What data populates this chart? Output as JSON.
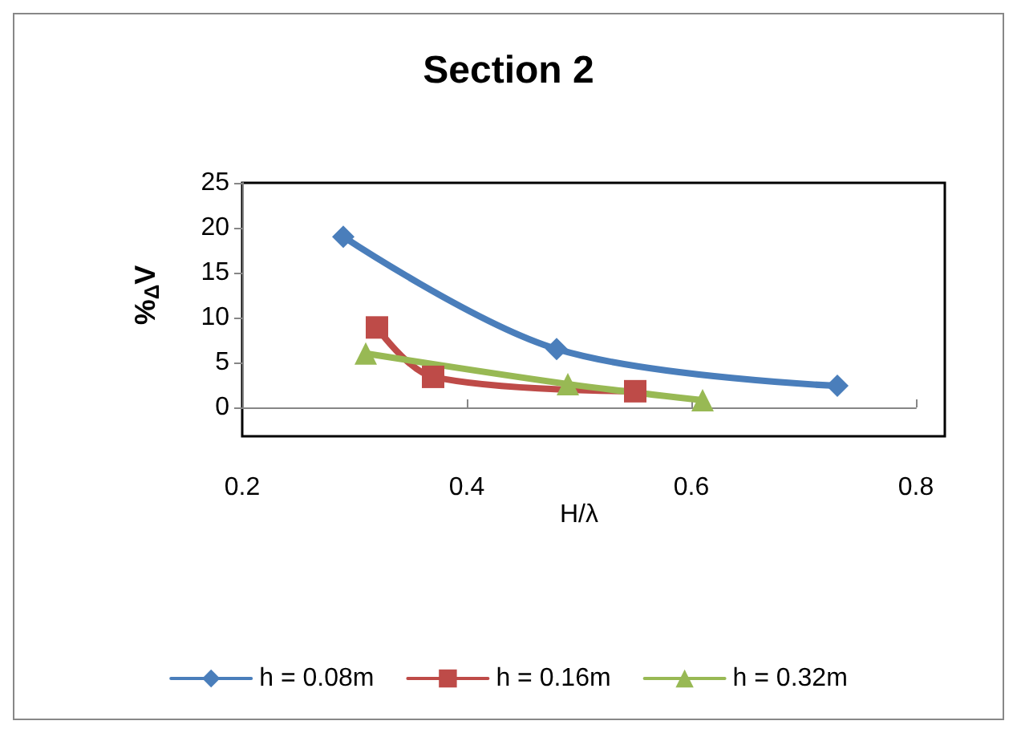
{
  "chart_data": {
    "type": "line",
    "title": "Section 2",
    "xlabel": "H/λ",
    "ylabel": "%$_{Δ}$V",
    "xlim": [
      0.2,
      0.8
    ],
    "xticks": [
      0.2,
      0.4,
      0.6,
      0.8
    ],
    "ylim": [
      0,
      25
    ],
    "yticks": [
      0,
      5,
      10,
      15,
      20,
      25
    ],
    "grid": false,
    "legend": "bottom",
    "line_style": "solid",
    "series": [
      {
        "name": "h = 0.08m",
        "color": "#4a7ebb",
        "marker": "diamond",
        "x": [
          0.29,
          0.48,
          0.73
        ],
        "values": [
          19,
          6.5,
          2.4
        ]
      },
      {
        "name": "h = 0.16m",
        "color": "#be4b48",
        "marker": "square",
        "x": [
          0.32,
          0.37,
          0.55
        ],
        "values": [
          8.9,
          3.4,
          1.8
        ]
      },
      {
        "name": "h = 0.32m",
        "color": "#98b954",
        "marker": "triangle",
        "x": [
          0.31,
          0.49,
          0.61
        ],
        "values": [
          6.0,
          2.6,
          0.8
        ]
      }
    ]
  }
}
